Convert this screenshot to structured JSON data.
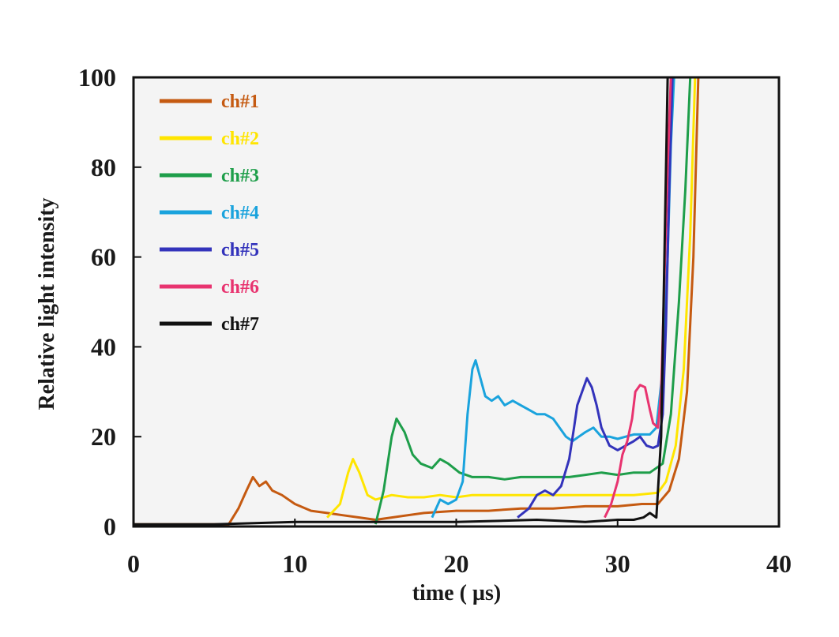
{
  "chart_data": {
    "type": "line",
    "xlabel": "time ( µs)",
    "ylabel": "Relative light intensity",
    "xlim": [
      0,
      40
    ],
    "ylim": [
      0,
      100
    ],
    "xticks": [
      0,
      10,
      20,
      30,
      40
    ],
    "yticks": [
      0,
      20,
      40,
      60,
      80,
      100
    ],
    "legend_position": "top-left",
    "grid": false,
    "series": [
      {
        "name": "ch#1",
        "color": "#c55a11",
        "points": [
          [
            0,
            0.5
          ],
          [
            5.9,
            0.5
          ],
          [
            6.5,
            4
          ],
          [
            7.0,
            8
          ],
          [
            7.4,
            11
          ],
          [
            7.8,
            9
          ],
          [
            8.2,
            10
          ],
          [
            8.6,
            8
          ],
          [
            9.2,
            7
          ],
          [
            10.0,
            5
          ],
          [
            11.0,
            3.5
          ],
          [
            12.0,
            3
          ],
          [
            13.0,
            2.5
          ],
          [
            14.0,
            2
          ],
          [
            15.0,
            1.5
          ],
          [
            16.0,
            2
          ],
          [
            18.0,
            3
          ],
          [
            20.0,
            3.5
          ],
          [
            22.0,
            3.5
          ],
          [
            24.0,
            4
          ],
          [
            26.0,
            4
          ],
          [
            28.0,
            4.5
          ],
          [
            30.0,
            4.5
          ],
          [
            31.5,
            5
          ],
          [
            32.5,
            5
          ],
          [
            33.2,
            8
          ],
          [
            33.8,
            15
          ],
          [
            34.3,
            30
          ],
          [
            34.7,
            60
          ],
          [
            35.0,
            100
          ]
        ]
      },
      {
        "name": "ch#2",
        "color": "#ffe500",
        "points": [
          [
            12.0,
            2
          ],
          [
            12.8,
            5
          ],
          [
            13.3,
            12
          ],
          [
            13.6,
            15
          ],
          [
            14.0,
            12
          ],
          [
            14.5,
            7
          ],
          [
            15.0,
            6
          ],
          [
            16.0,
            7
          ],
          [
            17.0,
            6.5
          ],
          [
            18.0,
            6.5
          ],
          [
            19.0,
            7
          ],
          [
            20.0,
            6.5
          ],
          [
            21.0,
            7
          ],
          [
            23.0,
            7
          ],
          [
            25.0,
            7
          ],
          [
            27.0,
            7
          ],
          [
            29.0,
            7
          ],
          [
            31.0,
            7
          ],
          [
            32.5,
            7.5
          ],
          [
            33.0,
            10
          ],
          [
            33.6,
            18
          ],
          [
            34.1,
            35
          ],
          [
            34.5,
            65
          ],
          [
            34.8,
            100
          ]
        ]
      },
      {
        "name": "ch#3",
        "color": "#1e9e4a",
        "points": [
          [
            15.0,
            0.5
          ],
          [
            15.5,
            8
          ],
          [
            16.0,
            20
          ],
          [
            16.3,
            24
          ],
          [
            16.8,
            21
          ],
          [
            17.3,
            16
          ],
          [
            17.8,
            14
          ],
          [
            18.5,
            13
          ],
          [
            19.0,
            15
          ],
          [
            19.5,
            14
          ],
          [
            20.2,
            12
          ],
          [
            21.0,
            11
          ],
          [
            22.0,
            11
          ],
          [
            23.0,
            10.5
          ],
          [
            24.0,
            11
          ],
          [
            25.0,
            11
          ],
          [
            26.0,
            11
          ],
          [
            27.0,
            11
          ],
          [
            28.0,
            11.5
          ],
          [
            29.0,
            12
          ],
          [
            30.0,
            11.5
          ],
          [
            31.0,
            12
          ],
          [
            32.0,
            12
          ],
          [
            32.8,
            14
          ],
          [
            33.3,
            25
          ],
          [
            33.8,
            50
          ],
          [
            34.2,
            75
          ],
          [
            34.5,
            100
          ]
        ]
      },
      {
        "name": "ch#4",
        "color": "#1aa3dd",
        "points": [
          [
            18.5,
            2
          ],
          [
            19.0,
            6
          ],
          [
            19.5,
            5
          ],
          [
            20.0,
            6
          ],
          [
            20.4,
            10
          ],
          [
            20.7,
            25
          ],
          [
            21.0,
            35
          ],
          [
            21.2,
            37
          ],
          [
            21.5,
            33
          ],
          [
            21.8,
            29
          ],
          [
            22.2,
            28
          ],
          [
            22.6,
            29
          ],
          [
            23.0,
            27
          ],
          [
            23.5,
            28
          ],
          [
            24.0,
            27
          ],
          [
            24.5,
            26
          ],
          [
            25.0,
            25
          ],
          [
            25.5,
            25
          ],
          [
            26.0,
            24
          ],
          [
            26.4,
            22
          ],
          [
            26.8,
            20
          ],
          [
            27.2,
            19
          ],
          [
            27.6,
            20
          ],
          [
            28.0,
            21
          ],
          [
            28.5,
            22
          ],
          [
            29.0,
            20
          ],
          [
            29.5,
            20
          ],
          [
            30.0,
            19.5
          ],
          [
            30.5,
            20
          ],
          [
            31.0,
            20.5
          ],
          [
            31.5,
            20.5
          ],
          [
            32.0,
            20.5
          ],
          [
            32.4,
            22
          ],
          [
            32.8,
            35
          ],
          [
            33.1,
            60
          ],
          [
            33.3,
            85
          ],
          [
            33.5,
            100
          ]
        ]
      },
      {
        "name": "ch#5",
        "color": "#3333bb",
        "points": [
          [
            23.8,
            2
          ],
          [
            24.5,
            4
          ],
          [
            25.0,
            7
          ],
          [
            25.5,
            8
          ],
          [
            26.0,
            7
          ],
          [
            26.5,
            9
          ],
          [
            27.0,
            15
          ],
          [
            27.3,
            22
          ],
          [
            27.5,
            27
          ],
          [
            27.8,
            30
          ],
          [
            28.1,
            33
          ],
          [
            28.4,
            31
          ],
          [
            28.7,
            27
          ],
          [
            29.0,
            22
          ],
          [
            29.5,
            18
          ],
          [
            30.0,
            17
          ],
          [
            30.5,
            18
          ],
          [
            31.0,
            19
          ],
          [
            31.4,
            20
          ],
          [
            31.8,
            18
          ],
          [
            32.2,
            17.5
          ],
          [
            32.5,
            18
          ],
          [
            32.8,
            25
          ],
          [
            33.0,
            45
          ],
          [
            33.2,
            75
          ],
          [
            33.4,
            100
          ]
        ]
      },
      {
        "name": "ch#6",
        "color": "#e8336f",
        "points": [
          [
            29.2,
            2
          ],
          [
            29.6,
            5
          ],
          [
            30.0,
            10
          ],
          [
            30.3,
            16
          ],
          [
            30.6,
            19
          ],
          [
            30.9,
            24
          ],
          [
            31.1,
            30
          ],
          [
            31.4,
            31.5
          ],
          [
            31.7,
            31
          ],
          [
            32.0,
            26
          ],
          [
            32.2,
            23
          ],
          [
            32.5,
            22
          ],
          [
            32.7,
            30
          ],
          [
            32.9,
            55
          ],
          [
            33.1,
            80
          ],
          [
            33.3,
            100
          ]
        ]
      },
      {
        "name": "ch#7",
        "color": "#111111",
        "points": [
          [
            0,
            0.5
          ],
          [
            5,
            0.5
          ],
          [
            10,
            1
          ],
          [
            15,
            1
          ],
          [
            20,
            1
          ],
          [
            25,
            1.5
          ],
          [
            28,
            1
          ],
          [
            30,
            1.5
          ],
          [
            31.0,
            1.5
          ],
          [
            31.6,
            2
          ],
          [
            32.0,
            3
          ],
          [
            32.4,
            2
          ],
          [
            32.7,
            20
          ],
          [
            32.9,
            60
          ],
          [
            33.1,
            100
          ]
        ]
      }
    ]
  }
}
